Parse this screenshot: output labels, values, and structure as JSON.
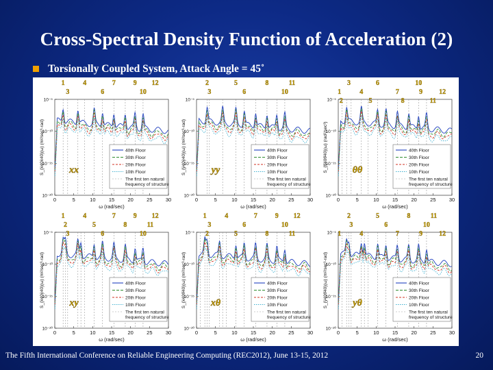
{
  "title": "Cross-Spectral Density Function of Acceleration (2)",
  "bullet": "Torsionally Coupled System, Attack Angle = 45˚",
  "footer": "The Fifth International Conference on Reliable Engineering Computing (REC2012), June 13-15, 2012",
  "page_number": "20",
  "colors": {
    "background": "#0d2a86",
    "bullet": "#f0a000",
    "mode_label": "#c8a000",
    "series_40": "#1f3fbf",
    "series_30": "#2e8b2e",
    "series_20": "#d03020",
    "series_10": "#40b0d0",
    "natural_freq": "#999999"
  },
  "chart_data": [
    {
      "type": "line",
      "panel_label": "xx",
      "ylabel": "S_{ẍ40ẍ40}(ω) (m²/sec³-rad)",
      "xlabel": "ω (rad/sec)",
      "xlim": [
        0,
        30
      ],
      "ylim": [
        -20,
        -5
      ],
      "y_scale": "log",
      "x_ticks": [
        0,
        5,
        10,
        15,
        20,
        25,
        30
      ],
      "y_ticks": [
        "10⁻⁵",
        "10⁻¹⁰",
        "10⁻¹⁵",
        "10⁻²⁰"
      ],
      "legend": [
        "40th Floor",
        "30th Floor",
        "20th Floor",
        "10th Floor",
        "The first ten natural frequency of structure"
      ],
      "legend_position": "right",
      "natural_frequencies": [
        2.2,
        3.4,
        6.1,
        7.9,
        10.4,
        12.6,
        15.6,
        18.6,
        21.2,
        23.3
      ],
      "peaks": [
        2.2,
        6.1,
        10.4,
        12.6,
        15.6,
        18.6,
        21.2,
        23.3
      ],
      "mode_labels": [
        {
          "text": "1",
          "x": 2.2,
          "row": 0
        },
        {
          "text": "4",
          "x": 7.9,
          "row": 0
        },
        {
          "text": "7",
          "x": 15.6,
          "row": 0
        },
        {
          "text": "9",
          "x": 21.2,
          "row": 0
        },
        {
          "text": "12",
          "x": 26.5,
          "row": 0
        },
        {
          "text": "3",
          "x": 3.4,
          "row": 1
        },
        {
          "text": "6",
          "x": 12.6,
          "row": 1
        },
        {
          "text": "10",
          "x": 23.3,
          "row": 1
        }
      ]
    },
    {
      "type": "line",
      "panel_label": "yy",
      "ylabel": "S_{ÿ40ÿ40}(ω) (m²/sec³-rad)",
      "xlabel": "ω (rad/sec)",
      "xlim": [
        0,
        30
      ],
      "ylim": [
        -20,
        -5
      ],
      "y_scale": "log",
      "x_ticks": [
        0,
        5,
        10,
        15,
        20,
        25,
        30
      ],
      "y_ticks": [
        "10⁻⁵",
        "10⁻¹⁰",
        "10⁻¹⁵",
        "10⁻²⁰"
      ],
      "legend": [
        "40th Floor",
        "30th Floor",
        "20th Floor",
        "10th Floor",
        "The first ten natural frequency of structure"
      ],
      "legend_position": "right",
      "natural_frequencies": [
        2.8,
        3.4,
        6.9,
        10.4,
        12.6,
        15.6,
        18.6,
        21.2,
        23.3
      ],
      "peaks": [
        2.8,
        6.9,
        10.4,
        12.6,
        15.6,
        18.6,
        21.2,
        23.3
      ],
      "mode_labels": [
        {
          "text": "2",
          "x": 2.8,
          "row": 0
        },
        {
          "text": "5",
          "x": 10.4,
          "row": 0
        },
        {
          "text": "8",
          "x": 18.6,
          "row": 0
        },
        {
          "text": "11",
          "x": 25.2,
          "row": 0
        },
        {
          "text": "3",
          "x": 3.4,
          "row": 1
        },
        {
          "text": "6",
          "x": 12.6,
          "row": 1
        },
        {
          "text": "10",
          "x": 23.3,
          "row": 1
        }
      ]
    },
    {
      "type": "line",
      "panel_label": "θθ",
      "ylabel": "S_{θ̈40θ̈40}(ω) (rad²/sec³)",
      "xlabel": "ω (rad/sec)",
      "xlim": [
        0,
        30
      ],
      "ylim": [
        -20,
        -5
      ],
      "y_scale": "log",
      "x_ticks": [
        0,
        5,
        10,
        15,
        20,
        25,
        30
      ],
      "y_ticks": [
        "10⁻⁵",
        "10⁻¹⁰",
        "10⁻¹⁵",
        "10⁻²⁰"
      ],
      "legend": [
        "40th Floor",
        "30th Floor",
        "20th Floor",
        "10th Floor",
        "The first ten natural frequency of structure"
      ],
      "legend_position": "right",
      "natural_frequencies": [
        1.0,
        2.2,
        3.4,
        6.1,
        7.9,
        10.4,
        12.6,
        15.6,
        18.6,
        21.2,
        23.3
      ],
      "peaks": [
        2.2,
        6.1,
        10.4,
        12.6,
        15.6,
        18.6,
        21.2,
        23.3
      ],
      "mode_labels": [
        {
          "text": "3",
          "x": 2.8,
          "row": 0
        },
        {
          "text": "6",
          "x": 10.4,
          "row": 0
        },
        {
          "text": "10",
          "x": 21.2,
          "row": 0
        },
        {
          "text": "1",
          "x": 0.3,
          "row": 1
        },
        {
          "text": "4",
          "x": 6.1,
          "row": 1
        },
        {
          "text": "7",
          "x": 15.6,
          "row": 1
        },
        {
          "text": "9",
          "x": 21.8,
          "row": 1
        },
        {
          "text": "12",
          "x": 27.5,
          "row": 1
        },
        {
          "text": "2",
          "x": 0.8,
          "row": 2
        },
        {
          "text": "5",
          "x": 8.5,
          "row": 2
        },
        {
          "text": "8",
          "x": 17.0,
          "row": 2
        },
        {
          "text": "11",
          "x": 25.0,
          "row": 2
        }
      ]
    },
    {
      "type": "line",
      "panel_label": "xy",
      "ylabel": "S_{ẍ40ÿ40}(ω) (m²/sec³-rad)",
      "xlabel": "ω (rad/sec)",
      "xlim": [
        0,
        30
      ],
      "ylim": [
        -20,
        -5
      ],
      "y_scale": "log",
      "x_ticks": [
        0,
        5,
        10,
        15,
        20,
        25,
        30
      ],
      "y_ticks": [
        "10⁻⁵",
        "10⁻¹⁰",
        "10⁻¹⁵",
        "10⁻²⁰"
      ],
      "legend": [
        "40th Floor",
        "30th Floor",
        "20th Floor",
        "10th Floor",
        "The first ten natural frequency of structure"
      ],
      "legend_position": "right",
      "natural_frequencies": [
        2.2,
        2.8,
        3.4,
        6.1,
        6.9,
        7.9,
        10.4,
        12.6,
        15.6,
        18.6,
        21.2,
        23.3
      ],
      "peaks": [
        2.2,
        2.8,
        6.1,
        6.9,
        10.4,
        12.6,
        15.6,
        18.6,
        21.2,
        23.3
      ],
      "mode_labels": [
        {
          "text": "1",
          "x": 2.2,
          "row": 0
        },
        {
          "text": "4",
          "x": 7.9,
          "row": 0
        },
        {
          "text": "7",
          "x": 15.6,
          "row": 0
        },
        {
          "text": "9",
          "x": 21.2,
          "row": 0
        },
        {
          "text": "12",
          "x": 26.5,
          "row": 0
        },
        {
          "text": "2",
          "x": 2.8,
          "row": 1
        },
        {
          "text": "5",
          "x": 10.4,
          "row": 1
        },
        {
          "text": "8",
          "x": 18.6,
          "row": 1
        },
        {
          "text": "11",
          "x": 25.2,
          "row": 1
        },
        {
          "text": "3",
          "x": 3.4,
          "row": 2
        },
        {
          "text": "6",
          "x": 12.6,
          "row": 2
        },
        {
          "text": "10",
          "x": 23.3,
          "row": 2
        }
      ]
    },
    {
      "type": "line",
      "panel_label": "xθ",
      "ylabel": "S_{ẍ40θ̈40}(ω) (m²/sec³-rad)",
      "xlabel": "ω (rad/sec)",
      "xlim": [
        0,
        30
      ],
      "ylim": [
        -20,
        -5
      ],
      "y_scale": "log",
      "x_ticks": [
        0,
        5,
        10,
        15,
        20,
        25,
        30
      ],
      "y_ticks": [
        "10⁻⁵",
        "10⁻¹⁰",
        "10⁻¹⁵",
        "10⁻²⁰"
      ],
      "legend": [
        "40th Floor",
        "30th Floor",
        "20th Floor",
        "10th Floor",
        "The first ten natural frequency of structure"
      ],
      "legend_position": "right",
      "natural_frequencies": [
        1.0,
        2.2,
        2.8,
        3.4,
        6.1,
        6.9,
        7.9,
        10.4,
        12.6,
        15.6,
        18.6,
        21.2,
        23.3
      ],
      "peaks": [
        2.2,
        2.8,
        6.1,
        10.4,
        12.6,
        15.6,
        18.6,
        21.2,
        23.3
      ],
      "mode_labels": [
        {
          "text": "1",
          "x": 2.2,
          "row": 0
        },
        {
          "text": "4",
          "x": 7.9,
          "row": 0
        },
        {
          "text": "7",
          "x": 15.6,
          "row": 0
        },
        {
          "text": "9",
          "x": 21.2,
          "row": 0
        },
        {
          "text": "12",
          "x": 26.5,
          "row": 0
        },
        {
          "text": "3",
          "x": 3.4,
          "row": 1
        },
        {
          "text": "6",
          "x": 12.6,
          "row": 1
        },
        {
          "text": "10",
          "x": 23.3,
          "row": 1
        },
        {
          "text": "2",
          "x": 2.8,
          "row": 2
        },
        {
          "text": "5",
          "x": 10.4,
          "row": 2
        },
        {
          "text": "8",
          "x": 18.6,
          "row": 2
        },
        {
          "text": "11",
          "x": 25.2,
          "row": 2
        }
      ]
    },
    {
      "type": "line",
      "panel_label": "yθ",
      "ylabel": "S_{ÿ40θ̈40}(ω) (m²/sec³-rad)",
      "xlabel": "ω (rad/sec)",
      "xlim": [
        0,
        30
      ],
      "ylim": [
        -20,
        -5
      ],
      "y_scale": "log",
      "x_ticks": [
        0,
        5,
        10,
        15,
        20,
        25,
        30
      ],
      "y_ticks": [
        "10⁻⁵",
        "10⁻¹⁰",
        "10⁻¹⁵",
        "10⁻²⁰"
      ],
      "legend": [
        "40th Floor",
        "30th Floor",
        "20th Floor",
        "10th Floor",
        "The first ten natural frequency of structure"
      ],
      "legend_position": "right",
      "natural_frequencies": [
        1.0,
        2.2,
        2.8,
        3.4,
        6.1,
        6.9,
        7.9,
        10.4,
        12.6,
        15.6,
        18.6,
        21.2,
        23.3
      ],
      "peaks": [
        2.2,
        2.8,
        6.1,
        6.9,
        10.4,
        12.6,
        15.6,
        18.6,
        21.2,
        23.3
      ],
      "mode_labels": [
        {
          "text": "2",
          "x": 2.8,
          "row": 0
        },
        {
          "text": "5",
          "x": 10.4,
          "row": 0
        },
        {
          "text": "8",
          "x": 18.6,
          "row": 0
        },
        {
          "text": "11",
          "x": 25.2,
          "row": 0
        },
        {
          "text": "3",
          "x": 3.4,
          "row": 1
        },
        {
          "text": "6",
          "x": 12.6,
          "row": 1
        },
        {
          "text": "10",
          "x": 23.3,
          "row": 1
        },
        {
          "text": "1",
          "x": 0.3,
          "row": 2
        },
        {
          "text": "4",
          "x": 6.1,
          "row": 2
        },
        {
          "text": "7",
          "x": 15.6,
          "row": 2
        },
        {
          "text": "9",
          "x": 21.8,
          "row": 2
        },
        {
          "text": "12",
          "x": 27.5,
          "row": 2
        }
      ]
    }
  ]
}
